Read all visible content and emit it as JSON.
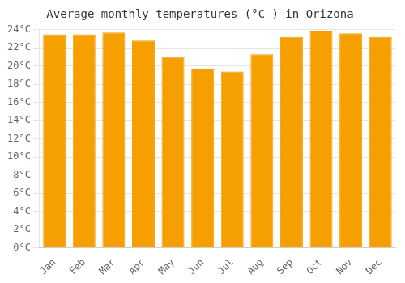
{
  "chart_data": {
    "type": "bar",
    "title": "Average monthly temperatures (°C ) in Orizona",
    "categories": [
      "Jan",
      "Feb",
      "Mar",
      "Apr",
      "May",
      "Jun",
      "Jul",
      "Aug",
      "Sep",
      "Oct",
      "Nov",
      "Dec"
    ],
    "values": [
      23.5,
      23.5,
      23.7,
      22.8,
      21.0,
      19.7,
      19.4,
      21.3,
      23.2,
      23.9,
      23.6,
      23.2
    ],
    "color": "#F5A000",
    "ylim": [
      0,
      24
    ],
    "yticks": [
      {
        "value": 0,
        "label": "0°C"
      },
      {
        "value": 2,
        "label": "2°C"
      },
      {
        "value": 4,
        "label": "4°C"
      },
      {
        "value": 6,
        "label": "6°C"
      },
      {
        "value": 8,
        "label": "8°C"
      },
      {
        "value": 10,
        "label": "10°C"
      },
      {
        "value": 12,
        "label": "12°C"
      },
      {
        "value": 14,
        "label": "14°C"
      },
      {
        "value": 16,
        "label": "16°C"
      },
      {
        "value": 18,
        "label": "18°C"
      },
      {
        "value": 20,
        "label": "20°C"
      },
      {
        "value": 22,
        "label": "22°C"
      },
      {
        "value": 24,
        "label": "24°C"
      }
    ],
    "grid": true
  }
}
